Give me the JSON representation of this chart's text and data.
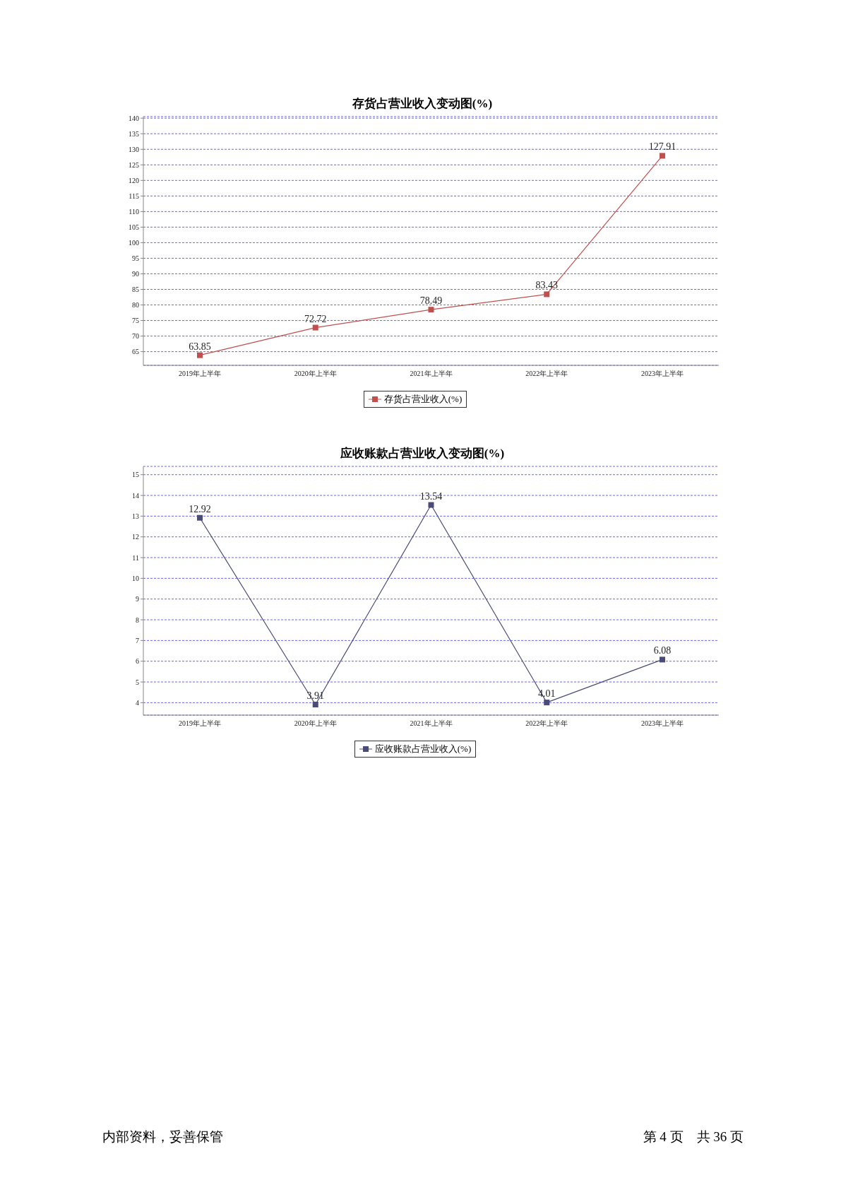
{
  "chart_data": [
    {
      "type": "line",
      "title": "存货占营业收入变动图(%)",
      "categories": [
        "2019年上半年",
        "2020年上半年",
        "2021年上半年",
        "2022年上半年",
        "2023年上半年"
      ],
      "series": [
        {
          "name": "存货占营业收入(%)",
          "color": "#c0504d",
          "values": [
            63.85,
            72.72,
            78.49,
            83.43,
            127.91
          ]
        }
      ],
      "ylim": [
        60.6,
        140.5
      ],
      "yticks": [
        65,
        70,
        75,
        80,
        85,
        90,
        95,
        100,
        105,
        110,
        115,
        120,
        125,
        130,
        135,
        140
      ],
      "grid": "y",
      "legend": "bottom",
      "marker": "square",
      "line_style": "solid",
      "data_labels": true
    },
    {
      "type": "line",
      "title": "应收账款占营业收入变动图(%)",
      "categories": [
        "2019年上半年",
        "2020年上半年",
        "2021年上半年",
        "2022年上半年",
        "2023年上半年"
      ],
      "series": [
        {
          "name": "应收账款占营业收入(%)",
          "color": "#4b4b78",
          "values": [
            12.92,
            3.91,
            13.54,
            4.01,
            6.08
          ]
        }
      ],
      "ylim": [
        3.4,
        15.4
      ],
      "yticks": [
        4,
        5,
        6,
        7,
        8,
        9,
        10,
        11,
        12,
        13,
        14,
        15
      ],
      "grid": "y",
      "legend": "bottom",
      "marker": "square",
      "line_style": "solid",
      "data_labels": true,
      "annotations": [
        "内部资料，妥善保管",
        "第 4 页　共 36 页"
      ]
    }
  ]
}
